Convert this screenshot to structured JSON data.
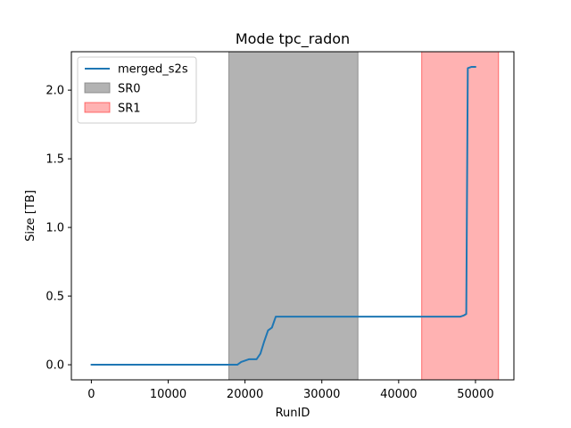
{
  "chart_data": {
    "type": "line",
    "title": "Mode tpc_radon",
    "xlabel": "RunID",
    "ylabel": "Size [TB]",
    "xlim": [
      -2600,
      55000
    ],
    "ylim": [
      -0.11,
      2.28
    ],
    "xticks": [
      0,
      10000,
      20000,
      30000,
      40000,
      50000
    ],
    "xtick_labels": [
      "0",
      "10000",
      "20000",
      "30000",
      "40000",
      "50000"
    ],
    "yticks": [
      0.0,
      0.5,
      1.0,
      1.5,
      2.0
    ],
    "ytick_labels": [
      "0.0",
      "0.5",
      "1.0",
      "1.5",
      "2.0"
    ],
    "grid": false,
    "legend_position": "top-left",
    "series": [
      {
        "name": "merged_s2s",
        "color": "#1f77b4",
        "x": [
          0,
          17000,
          19000,
          19500,
          20000,
          20500,
          21000,
          21500,
          22000,
          22500,
          23000,
          23500,
          24000,
          24500,
          30000,
          40000,
          48000,
          48500,
          48800,
          49000,
          49500,
          50000
        ],
        "y": [
          0.0,
          0.0,
          0.0,
          0.02,
          0.03,
          0.04,
          0.04,
          0.04,
          0.08,
          0.17,
          0.25,
          0.27,
          0.35,
          0.35,
          0.35,
          0.35,
          0.35,
          0.36,
          0.37,
          2.16,
          2.17,
          2.17
        ]
      }
    ],
    "bands": [
      {
        "name": "SR0",
        "x_start": 17900,
        "x_end": 34700,
        "color": "#808080",
        "alpha": 0.6
      },
      {
        "name": "SR1",
        "x_start": 43000,
        "x_end": 53000,
        "color": "#ff0000",
        "alpha": 0.3
      }
    ]
  }
}
